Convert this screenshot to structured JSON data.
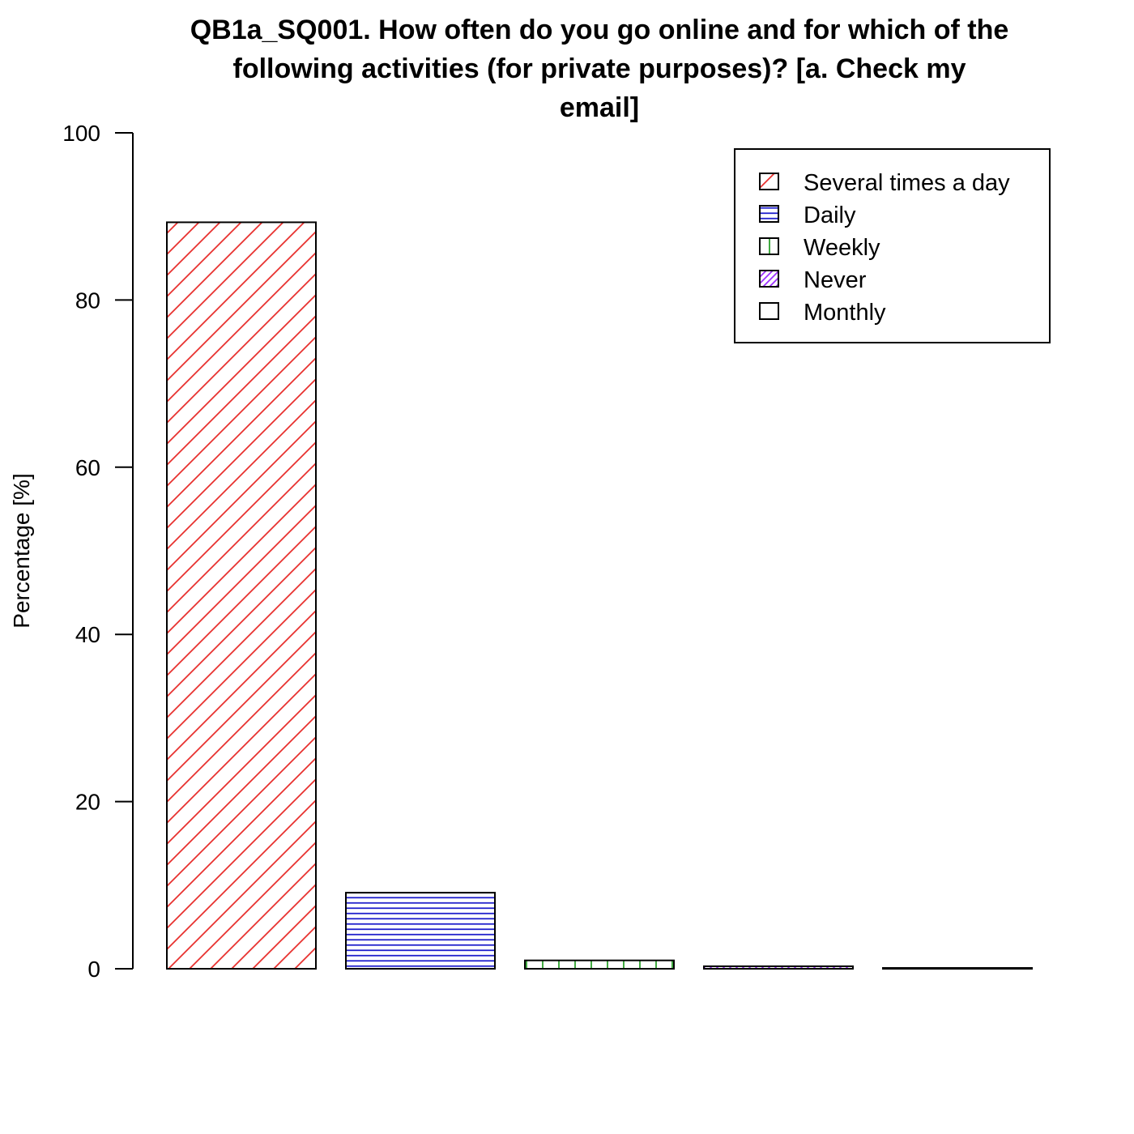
{
  "chart_data": {
    "type": "bar",
    "title_lines": [
      "QB1a_SQ001. How often do you go online and for which of the",
      "following activities (for private purposes)? [a. Check my",
      "email]"
    ],
    "ylabel": "Percentage [%]",
    "ylim": [
      0,
      100
    ],
    "yticks": [
      "0",
      "20",
      "40",
      "60",
      "80",
      "100"
    ],
    "categories": [
      "Several times a day",
      "Daily",
      "Weekly",
      "Never",
      "Monthly"
    ],
    "values": [
      89.3,
      9.1,
      1.0,
      0.3,
      0.1
    ],
    "colors": [
      "#e8312f",
      "#1f1fcc",
      "#2ca02c",
      "#9b30ff",
      "#ff8c00"
    ],
    "patterns": [
      "diagonal-45",
      "horizontal",
      "vertical",
      "diagonal-45-dense",
      "none"
    ],
    "legend_position": "top-right"
  }
}
